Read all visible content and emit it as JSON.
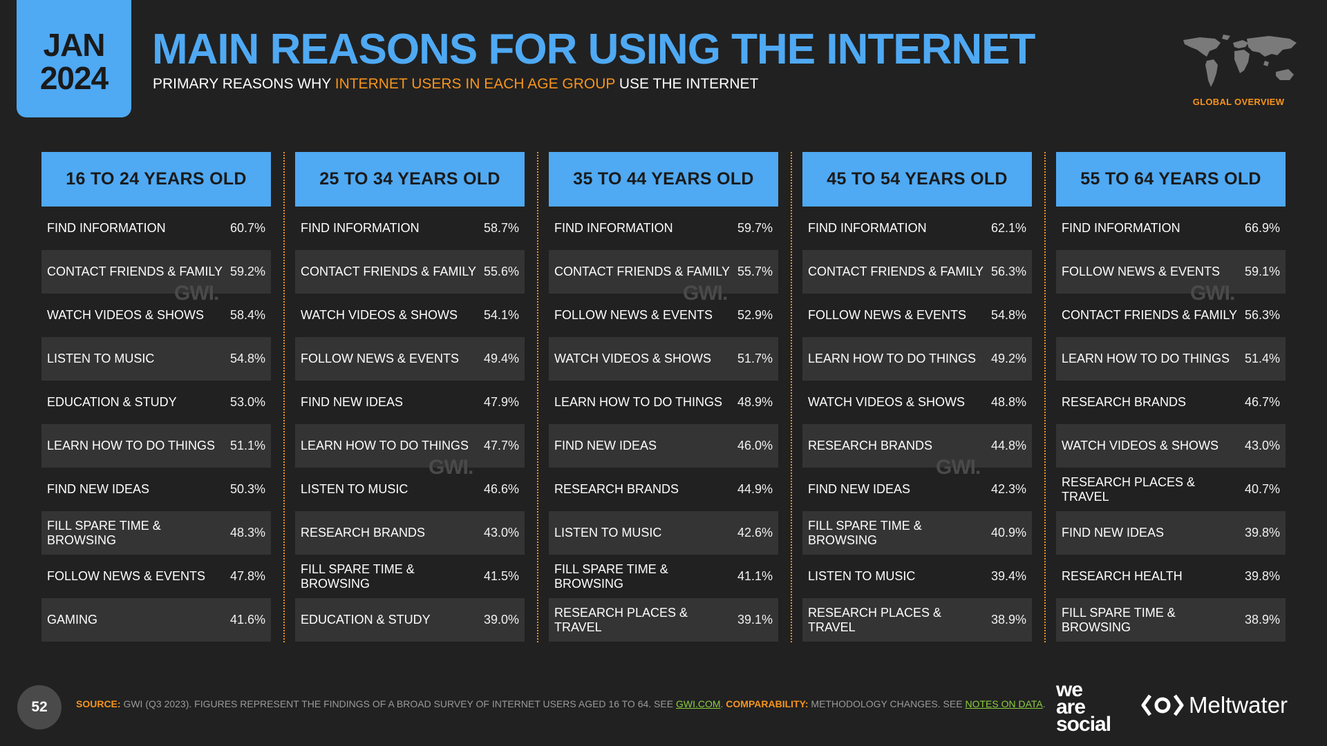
{
  "header": {
    "month": "JAN",
    "year": "2024",
    "title": "MAIN REASONS FOR USING THE INTERNET",
    "subtitle_pre": "PRIMARY REASONS WHY ",
    "subtitle_highlight": "INTERNET USERS IN EACH AGE GROUP",
    "subtitle_post": " USE THE INTERNET",
    "section_label": "GLOBAL OVERVIEW"
  },
  "watermark": "GWI.",
  "age_groups": [
    {
      "label": "16 TO 24 YEARS OLD",
      "rows": [
        {
          "reason": "FIND INFORMATION",
          "value": "60.7%"
        },
        {
          "reason": "CONTACT FRIENDS & FAMILY",
          "value": "59.2%"
        },
        {
          "reason": "WATCH VIDEOS & SHOWS",
          "value": "58.4%"
        },
        {
          "reason": "LISTEN TO MUSIC",
          "value": "54.8%"
        },
        {
          "reason": "EDUCATION & STUDY",
          "value": "53.0%"
        },
        {
          "reason": "LEARN HOW TO DO THINGS",
          "value": "51.1%"
        },
        {
          "reason": "FIND NEW IDEAS",
          "value": "50.3%"
        },
        {
          "reason": "FILL SPARE TIME & BROWSING",
          "value": "48.3%"
        },
        {
          "reason": "FOLLOW NEWS & EVENTS",
          "value": "47.8%"
        },
        {
          "reason": "GAMING",
          "value": "41.6%"
        }
      ]
    },
    {
      "label": "25 TO 34 YEARS OLD",
      "rows": [
        {
          "reason": "FIND INFORMATION",
          "value": "58.7%"
        },
        {
          "reason": "CONTACT FRIENDS & FAMILY",
          "value": "55.6%"
        },
        {
          "reason": "WATCH VIDEOS & SHOWS",
          "value": "54.1%"
        },
        {
          "reason": "FOLLOW NEWS & EVENTS",
          "value": "49.4%"
        },
        {
          "reason": "FIND NEW IDEAS",
          "value": "47.9%"
        },
        {
          "reason": "LEARN HOW TO DO THINGS",
          "value": "47.7%"
        },
        {
          "reason": "LISTEN TO MUSIC",
          "value": "46.6%"
        },
        {
          "reason": "RESEARCH BRANDS",
          "value": "43.0%"
        },
        {
          "reason": "FILL SPARE TIME & BROWSING",
          "value": "41.5%"
        },
        {
          "reason": "EDUCATION & STUDY",
          "value": "39.0%"
        }
      ]
    },
    {
      "label": "35 TO 44 YEARS OLD",
      "rows": [
        {
          "reason": "FIND INFORMATION",
          "value": "59.7%"
        },
        {
          "reason": "CONTACT FRIENDS & FAMILY",
          "value": "55.7%"
        },
        {
          "reason": "FOLLOW NEWS & EVENTS",
          "value": "52.9%"
        },
        {
          "reason": "WATCH VIDEOS & SHOWS",
          "value": "51.7%"
        },
        {
          "reason": "LEARN HOW TO DO THINGS",
          "value": "48.9%"
        },
        {
          "reason": "FIND NEW IDEAS",
          "value": "46.0%"
        },
        {
          "reason": "RESEARCH BRANDS",
          "value": "44.9%"
        },
        {
          "reason": "LISTEN TO MUSIC",
          "value": "42.6%"
        },
        {
          "reason": "FILL SPARE TIME & BROWSING",
          "value": "41.1%"
        },
        {
          "reason": "RESEARCH PLACES & TRAVEL",
          "value": "39.1%"
        }
      ]
    },
    {
      "label": "45 TO 54 YEARS OLD",
      "rows": [
        {
          "reason": "FIND INFORMATION",
          "value": "62.1%"
        },
        {
          "reason": "CONTACT FRIENDS & FAMILY",
          "value": "56.3%"
        },
        {
          "reason": "FOLLOW NEWS & EVENTS",
          "value": "54.8%"
        },
        {
          "reason": "LEARN HOW TO DO THINGS",
          "value": "49.2%"
        },
        {
          "reason": "WATCH VIDEOS & SHOWS",
          "value": "48.8%"
        },
        {
          "reason": "RESEARCH BRANDS",
          "value": "44.8%"
        },
        {
          "reason": "FIND NEW IDEAS",
          "value": "42.3%"
        },
        {
          "reason": "FILL SPARE TIME & BROWSING",
          "value": "40.9%"
        },
        {
          "reason": "LISTEN TO MUSIC",
          "value": "39.4%"
        },
        {
          "reason": "RESEARCH PLACES & TRAVEL",
          "value": "38.9%"
        }
      ]
    },
    {
      "label": "55 TO 64 YEARS OLD",
      "rows": [
        {
          "reason": "FIND INFORMATION",
          "value": "66.9%"
        },
        {
          "reason": "FOLLOW NEWS & EVENTS",
          "value": "59.1%"
        },
        {
          "reason": "CONTACT FRIENDS & FAMILY",
          "value": "56.3%"
        },
        {
          "reason": "LEARN HOW TO DO THINGS",
          "value": "51.4%"
        },
        {
          "reason": "RESEARCH BRANDS",
          "value": "46.7%"
        },
        {
          "reason": "WATCH VIDEOS & SHOWS",
          "value": "43.0%"
        },
        {
          "reason": "RESEARCH PLACES & TRAVEL",
          "value": "40.7%"
        },
        {
          "reason": "FIND NEW IDEAS",
          "value": "39.8%"
        },
        {
          "reason": "RESEARCH HEALTH",
          "value": "39.8%"
        },
        {
          "reason": "FILL SPARE TIME & BROWSING",
          "value": "38.9%"
        }
      ]
    }
  ],
  "footer": {
    "page_number": "52",
    "source_label": "SOURCE:",
    "source_text": " GWI (Q3 2023). FIGURES REPRESENT THE FINDINGS OF A BROAD SURVEY OF INTERNET USERS AGED 16 TO 64. SEE ",
    "source_link": "GWI.COM",
    "source_sep": ". ",
    "comparability_label": "COMPARABILITY:",
    "comparability_text": " METHODOLOGY CHANGES. SEE ",
    "comparability_link": "NOTES ON DATA",
    "comparability_end": ".",
    "brand_1_line1": "we",
    "brand_1_line2": "are",
    "brand_1_line3": "social",
    "brand_2": "Meltwater"
  },
  "colors": {
    "background": "#212121",
    "accent_blue": "#4fa9f3",
    "accent_orange": "#f7941d",
    "link_green": "#8ccf3f",
    "row_alt": "#343434"
  }
}
